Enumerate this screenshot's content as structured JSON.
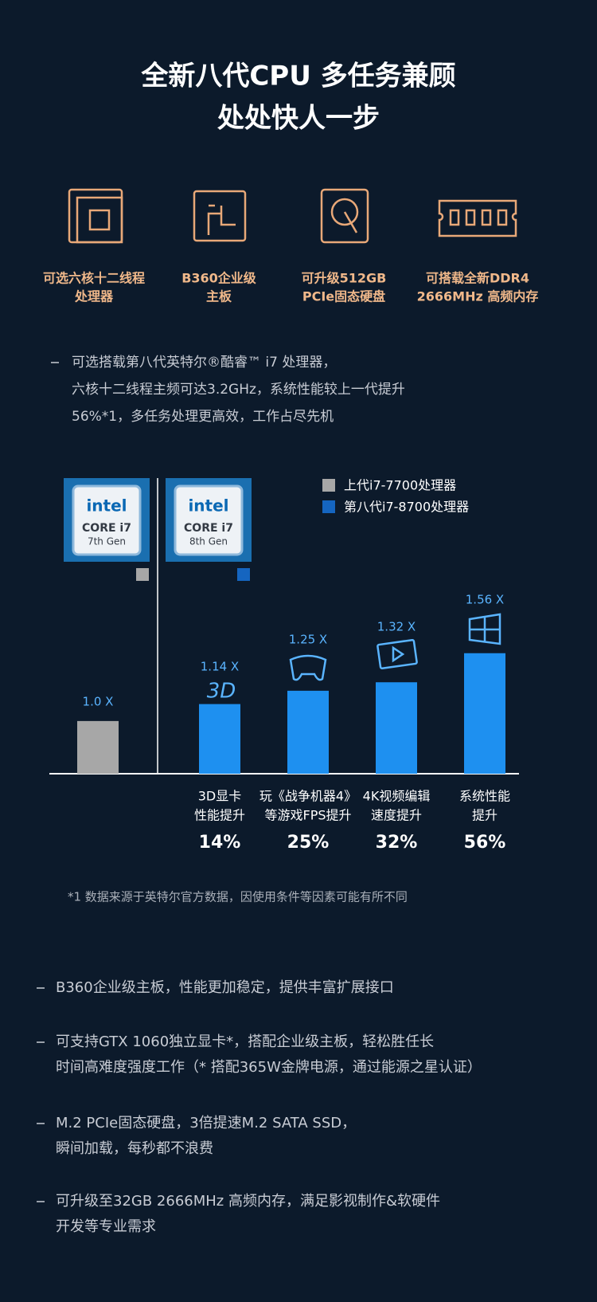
{
  "header": {
    "title_lines": [
      "全新八代CPU 多任务兼顾",
      "处处快人一步"
    ]
  },
  "features": [
    {
      "lines": [
        "可选六核十二线程",
        "处理器"
      ]
    },
    {
      "lines": [
        "B360企业级",
        "主板"
      ]
    },
    {
      "lines": [
        "可升级512GB",
        "PCIe固态硬盘"
      ]
    },
    {
      "lines": [
        "可搭载全新DDR4",
        "2666MHz 高频内存"
      ]
    }
  ],
  "intro": {
    "lines": [
      "可选搭载第八代英特尔®酷睿™ i7 处理器，",
      "六核十二线程主频可达3.2GHz，系统性能较上一代提升",
      "56%*1，多任务处理更高效，工作占尽先机"
    ]
  },
  "chart": {
    "badges": [
      {
        "brand": "intel",
        "line1": "CORE i7",
        "line2": "7th Gen"
      },
      {
        "brand": "intel",
        "line1": "CORE i7",
        "line2": "8th Gen"
      }
    ],
    "legend": [
      {
        "name": "上代i7-7700处理器",
        "color": "#a7a7a7"
      },
      {
        "name": "第八代i7-8700处理器",
        "color": "#1565c0"
      }
    ],
    "bars": [
      {
        "value": 1.0,
        "value_label": "1.0 X",
        "color": "#a7a7a7"
      },
      {
        "value": 1.14,
        "value_label": "1.14 X",
        "color": "#1e90f0"
      },
      {
        "value": 1.25,
        "value_label": "1.25 X",
        "color": "#1e90f0"
      },
      {
        "value": 1.32,
        "value_label": "1.32 X",
        "color": "#1e90f0"
      },
      {
        "value": 1.56,
        "value_label": "1.56 X",
        "color": "#1e90f0"
      }
    ],
    "groups": [
      {
        "lines": [
          "3D显卡",
          "性能提升"
        ],
        "gain": "14%"
      },
      {
        "lines": [
          "玩《战争机器4》",
          "等游戏FPS提升"
        ],
        "gain": "25%"
      },
      {
        "lines": [
          "4K视频编辑",
          "速度提升"
        ],
        "gain": "32%"
      },
      {
        "lines": [
          "系统性能",
          "提升"
        ],
        "gain": "56%"
      }
    ]
  },
  "footnote": "*1 数据来源于英特尔官方数据，因使用条件等因素可能有所不同",
  "bullets": [
    {
      "lines": [
        "B360企业级主板，性能更加稳定，提供丰富扩展接口"
      ]
    },
    {
      "lines": [
        "可支持GTX 1060独立显卡*，搭配企业级主板，轻松胜任长",
        "时间高难度强度工作（* 搭配365W金牌电源，通过能源之星认证）"
      ]
    },
    {
      "lines": [
        "M.2 PCIe固态硬盘，3倍提速M.2 SATA SSD，",
        "瞬间加载，每秒都不浪费"
      ]
    },
    {
      "lines": [
        "可升级至32GB 2666MHz 高频内存，满足影视制作&软硬件",
        "开发等专业需求"
      ]
    }
  ]
}
